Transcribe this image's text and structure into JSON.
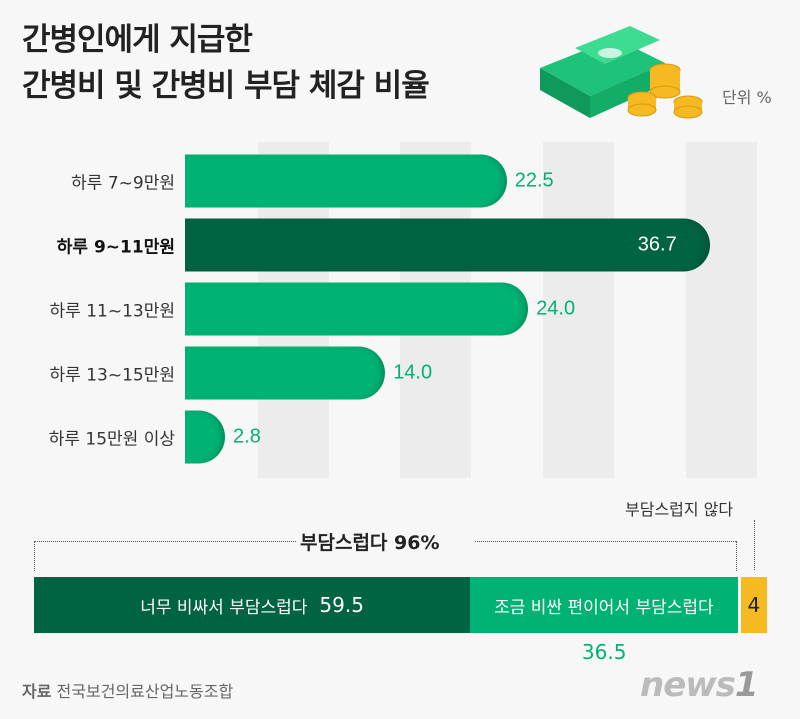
{
  "title": {
    "line1": "간병인에게 지급한",
    "line2": "간병비 및 간병비 부담 체감 비율"
  },
  "unit": "단위 %",
  "colors": {
    "accent": "#00b274",
    "dark": "#006341",
    "yellow": "#f5b922",
    "grid": "#ececec"
  },
  "chart_data": [
    {
      "type": "bar",
      "orientation": "horizontal",
      "categories": [
        "하루 7~9만원",
        "하루 9~11만원",
        "하루 11~13만원",
        "하루 13~15만원",
        "하루 15만원 이상"
      ],
      "values": [
        22.5,
        36.7,
        24.0,
        14.0,
        2.8
      ],
      "value_labels": [
        "22.5",
        "36.7",
        "24.0",
        "14.0",
        "2.8"
      ],
      "highlight": "하루 9~11만원"
    },
    {
      "type": "bar",
      "orientation": "stacked-horizontal",
      "group_label": "부담스럽다 96%",
      "series": [
        {
          "name": "너무 비싸서 부담스럽다",
          "value": 59.5,
          "label": "59.5",
          "color": "#006341"
        },
        {
          "name": "조금 비싼 편이어서 부담스럽다",
          "value": 36.5,
          "label": "36.5",
          "color": "#00b274"
        },
        {
          "name": "부담스럽지 않다",
          "value": 4,
          "label": "4",
          "color": "#f5b922"
        }
      ]
    }
  ],
  "source": {
    "label": "자료",
    "text": "전국보건의료산업노동조합"
  },
  "logo": "news1"
}
